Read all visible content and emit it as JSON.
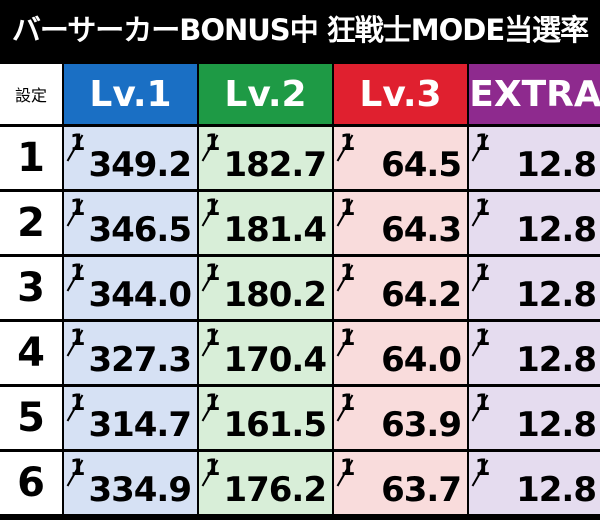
{
  "title": "バーサーカーBONUS中 狂戦士MODE当選率",
  "table": {
    "header": [
      "設定",
      "Lv.1",
      "Lv.2",
      "Lv.3",
      "EXTRA"
    ],
    "numerator": "1",
    "rows": [
      [
        "1",
        "349.2",
        "182.7",
        "64.5",
        "12.8"
      ],
      [
        "2",
        "346.5",
        "181.4",
        "64.3",
        "12.8"
      ],
      [
        "3",
        "344.0",
        "180.2",
        "64.2",
        "12.8"
      ],
      [
        "4",
        "327.3",
        "170.4",
        "64.0",
        "12.8"
      ],
      [
        "5",
        "314.7",
        "161.5",
        "63.9",
        "12.8"
      ],
      [
        "6",
        "334.9",
        "176.2",
        "63.7",
        "12.8"
      ]
    ]
  }
}
